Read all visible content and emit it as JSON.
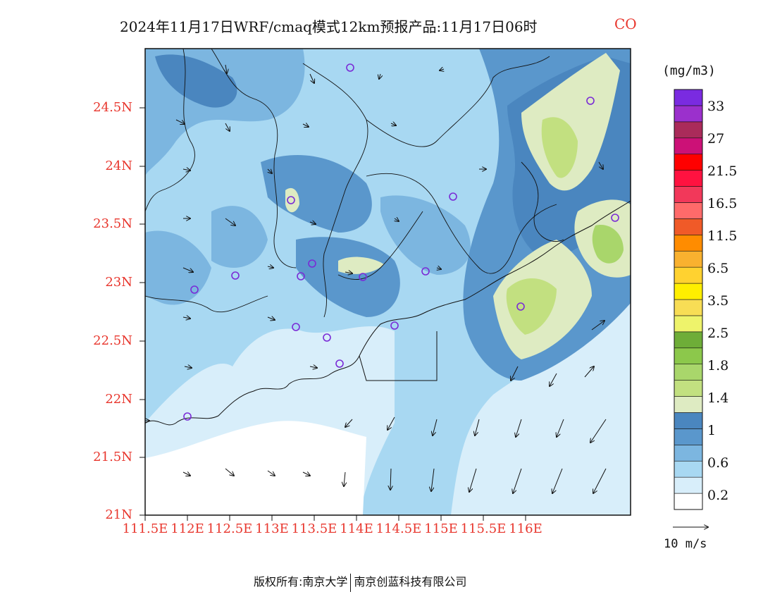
{
  "title": {
    "text": "2024年11月17日WRF/cmaq模式12km预报产品:11月17日06时",
    "species": "CO",
    "species_color": "#e8362d"
  },
  "map": {
    "lat_ticks": [
      "24.5N",
      "24N",
      "23.5N",
      "23N",
      "22.5N",
      "22N",
      "21.5N",
      "21N"
    ],
    "lon_ticks": [
      "111.5E",
      "112E",
      "112.5E",
      "113E",
      "113.5E",
      "114E",
      "114.5E",
      "115E",
      "115.5E",
      "116E"
    ],
    "tick_color": "#e8362d",
    "station_marker_color": "#7a2bd6"
  },
  "legend": {
    "unit": "(mg/m3)",
    "bins": [
      {
        "color": "#ffffff"
      },
      {
        "color": "#d8eefa"
      },
      {
        "color": "#a8d8f2"
      },
      {
        "color": "#7cb6e0"
      },
      {
        "color": "#5a97cc"
      },
      {
        "color": "#4a86bf"
      },
      {
        "color": "#deebc2"
      },
      {
        "color": "#c2e080"
      },
      {
        "color": "#a9d66b"
      },
      {
        "color": "#8cc84b"
      },
      {
        "color": "#6ead38"
      },
      {
        "color": "#eef36b"
      },
      {
        "color": "#f8dd55"
      },
      {
        "color": "#ffef00"
      },
      {
        "color": "#ffd230"
      },
      {
        "color": "#f9b12f"
      },
      {
        "color": "#ff8c00"
      },
      {
        "color": "#f05a28"
      },
      {
        "color": "#ff6a6a"
      },
      {
        "color": "#f2385a"
      },
      {
        "color": "#ff1240"
      },
      {
        "color": "#ff0000"
      },
      {
        "color": "#cc1177"
      },
      {
        "color": "#aa2b5a"
      },
      {
        "color": "#9b30cc"
      },
      {
        "color": "#7a2be0"
      }
    ],
    "labels": [
      "33",
      "27",
      "21.5",
      "16.5",
      "11.5",
      "6.5",
      "3.5",
      "2.5",
      "1.8",
      "1.4",
      "1",
      "0.6",
      "0.2"
    ]
  },
  "wind_reference": {
    "label": "10 m/s"
  },
  "footer": {
    "left": "版权所有:南京大学",
    "right": "南京创蓝科技有限公司"
  }
}
